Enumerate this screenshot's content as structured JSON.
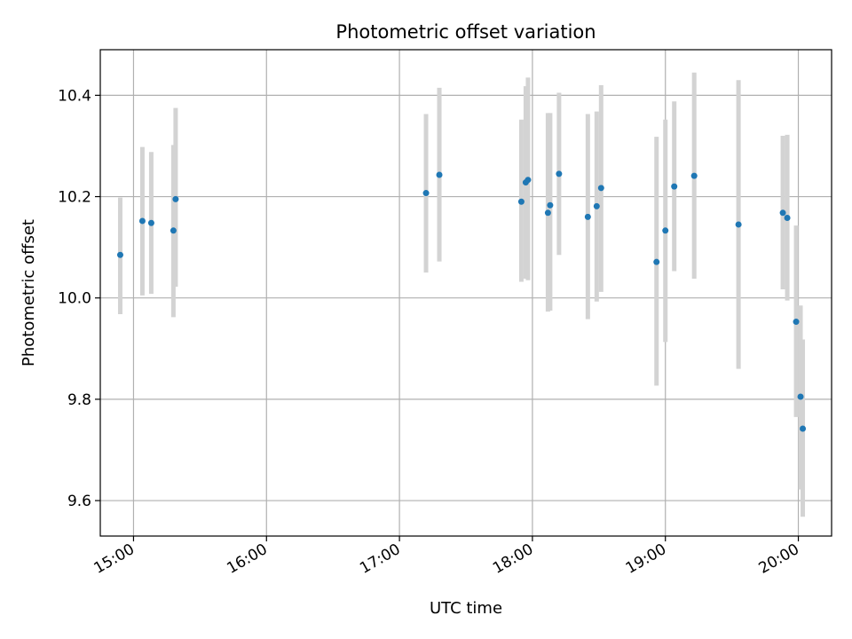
{
  "chart_data": {
    "type": "scatter",
    "title": "Photometric offset variation",
    "xlabel": "UTC time",
    "ylabel": "Photometric offset",
    "x_axis": {
      "kind": "time",
      "range": [
        "14:45",
        "20:15"
      ],
      "ticks": [
        "15:00",
        "16:00",
        "17:00",
        "18:00",
        "19:00",
        "20:00"
      ]
    },
    "y_axis": {
      "range": [
        9.53,
        10.49
      ],
      "ticks": [
        "9.6",
        "9.8",
        "10.0",
        "10.2",
        "10.4"
      ]
    },
    "grid": true,
    "colors": {
      "point": "#1f77b4",
      "errorbar": "#d3d3d3",
      "grid": "#b0b0b0"
    },
    "points": [
      {
        "t": "14:54",
        "y": 10.085,
        "yerr_low": 9.968,
        "yerr_high": 10.198
      },
      {
        "t": "15:04",
        "y": 10.152,
        "yerr_low": 10.005,
        "yerr_high": 10.298
      },
      {
        "t": "15:08",
        "y": 10.148,
        "yerr_low": 10.008,
        "yerr_high": 10.288
      },
      {
        "t": "15:18",
        "y": 10.133,
        "yerr_low": 9.962,
        "yerr_high": 10.302
      },
      {
        "t": "15:19",
        "y": 10.195,
        "yerr_low": 10.022,
        "yerr_high": 10.375
      },
      {
        "t": "17:12",
        "y": 10.207,
        "yerr_low": 10.05,
        "yerr_high": 10.363
      },
      {
        "t": "17:18",
        "y": 10.243,
        "yerr_low": 10.072,
        "yerr_high": 10.415
      },
      {
        "t": "17:55",
        "y": 10.19,
        "yerr_low": 10.032,
        "yerr_high": 10.352
      },
      {
        "t": "17:57",
        "y": 10.228,
        "yerr_low": 10.038,
        "yerr_high": 10.418
      },
      {
        "t": "17:58",
        "y": 10.233,
        "yerr_low": 10.035,
        "yerr_high": 10.435
      },
      {
        "t": "18:07",
        "y": 10.168,
        "yerr_low": 9.973,
        "yerr_high": 10.365
      },
      {
        "t": "18:08",
        "y": 10.183,
        "yerr_low": 9.975,
        "yerr_high": 10.365
      },
      {
        "t": "18:12",
        "y": 10.245,
        "yerr_low": 10.085,
        "yerr_high": 10.405
      },
      {
        "t": "18:25",
        "y": 10.16,
        "yerr_low": 9.958,
        "yerr_high": 10.363
      },
      {
        "t": "18:29",
        "y": 10.181,
        "yerr_low": 9.993,
        "yerr_high": 10.368
      },
      {
        "t": "18:31",
        "y": 10.217,
        "yerr_low": 10.012,
        "yerr_high": 10.42
      },
      {
        "t": "18:56",
        "y": 10.071,
        "yerr_low": 9.827,
        "yerr_high": 10.318
      },
      {
        "t": "19:00",
        "y": 10.133,
        "yerr_low": 9.913,
        "yerr_high": 10.352
      },
      {
        "t": "19:04",
        "y": 10.22,
        "yerr_low": 10.053,
        "yerr_high": 10.388
      },
      {
        "t": "19:13",
        "y": 10.241,
        "yerr_low": 10.038,
        "yerr_high": 10.445
      },
      {
        "t": "19:33",
        "y": 10.145,
        "yerr_low": 9.86,
        "yerr_high": 10.43
      },
      {
        "t": "19:53",
        "y": 10.168,
        "yerr_low": 10.017,
        "yerr_high": 10.32
      },
      {
        "t": "19:55",
        "y": 10.158,
        "yerr_low": 9.995,
        "yerr_high": 10.322
      },
      {
        "t": "19:59",
        "y": 9.953,
        "yerr_low": 9.765,
        "yerr_high": 10.143
      },
      {
        "t": "20:01",
        "y": 9.805,
        "yerr_low": 9.622,
        "yerr_high": 9.985
      },
      {
        "t": "20:02",
        "y": 9.742,
        "yerr_low": 9.568,
        "yerr_high": 9.918
      }
    ]
  }
}
